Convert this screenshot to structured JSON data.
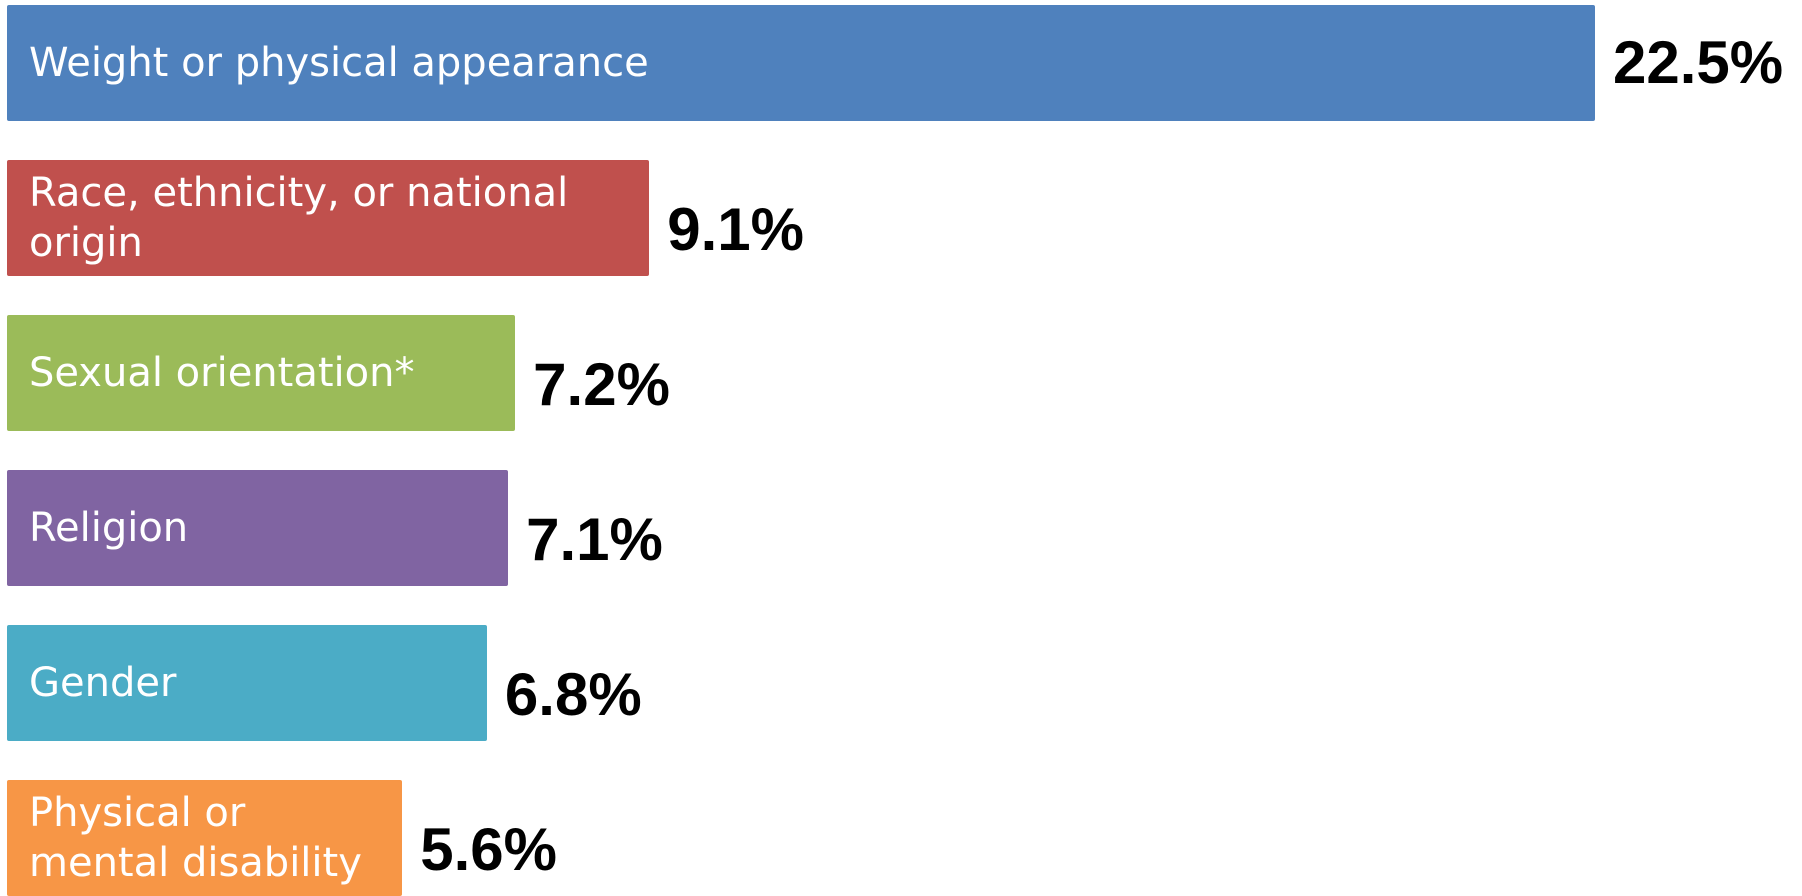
{
  "chart_data": {
    "type": "bar",
    "categories": [
      "Weight or physical appearance",
      "Race, ethnicity, or national origin",
      "Sexual orientation*",
      "Religion",
      "Gender",
      "Physical or mental disability"
    ],
    "values": [
      22.5,
      9.1,
      7.2,
      7.1,
      6.8,
      5.6
    ],
    "value_labels": [
      "22.5%",
      "9.1%",
      "7.2%",
      "7.1%",
      "6.8%",
      "5.6%"
    ],
    "colors": [
      "#4f81bd",
      "#c0504d",
      "#9bbb59",
      "#8064a2",
      "#4bacc6",
      "#f79646"
    ]
  }
}
